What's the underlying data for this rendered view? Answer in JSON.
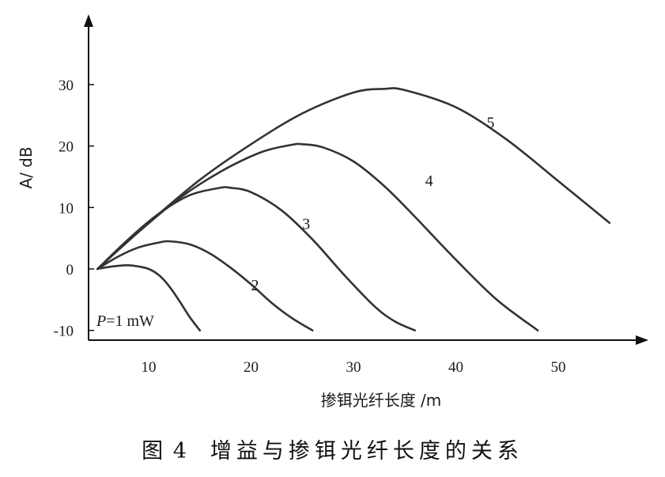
{
  "caption": {
    "figure_number": "图 4",
    "text": "增益与掺铒光纤长度的关系"
  },
  "chart_data": {
    "type": "line",
    "title": "",
    "xlabel": "掺铒光纤长度 /m",
    "ylabel": "A/ dB",
    "xlim": [
      5,
      58
    ],
    "ylim": [
      -10,
      38
    ],
    "x_ticks": [
      10,
      20,
      30,
      40,
      50
    ],
    "y_ticks": [
      -10,
      0,
      10,
      20,
      30
    ],
    "annotation": "P=1 mW",
    "series": [
      {
        "name": "",
        "label_pos": [
          2,
          -5
        ],
        "x": [
          5,
          6,
          7,
          8,
          9,
          10,
          11,
          12,
          13,
          14,
          15
        ],
        "y": [
          0,
          0.3,
          0.5,
          0.6,
          0.4,
          0,
          -1,
          -2.8,
          -5.2,
          -7.8,
          -10
        ]
      },
      {
        "name": "2",
        "label_pos": [
          20,
          -3.5
        ],
        "x": [
          5,
          7,
          9,
          11,
          12,
          14,
          16,
          18,
          20,
          22,
          24,
          26
        ],
        "y": [
          0,
          2,
          3.5,
          4.3,
          4.5,
          4,
          2.5,
          0.2,
          -2.5,
          -5.5,
          -8,
          -10
        ]
      },
      {
        "name": "3",
        "label_pos": [
          25,
          6.5
        ],
        "x": [
          5,
          8,
          11,
          14,
          17,
          18,
          20,
          23,
          26,
          29,
          32,
          34,
          36
        ],
        "y": [
          0,
          4.8,
          9,
          12,
          13.2,
          13.2,
          12.5,
          9.5,
          4.8,
          -0.8,
          -6,
          -8.5,
          -10
        ]
      },
      {
        "name": "4",
        "label_pos": [
          37,
          13.5
        ],
        "x": [
          5,
          9,
          13,
          17,
          21,
          24,
          25,
          27,
          30,
          33,
          36,
          40,
          44,
          48
        ],
        "y": [
          0,
          6,
          11.5,
          15.8,
          19,
          20.2,
          20.3,
          19.8,
          17.5,
          13.5,
          8.5,
          1.5,
          -5,
          -10
        ]
      },
      {
        "name": "5",
        "label_pos": [
          43,
          23
        ],
        "x": [
          5,
          10,
          15,
          20,
          25,
          30,
          33,
          35,
          40,
          45,
          50,
          55
        ],
        "y": [
          0,
          7.5,
          14.5,
          20.3,
          25.3,
          28.7,
          29.3,
          29.1,
          26.3,
          21,
          14.3,
          7.5
        ]
      }
    ]
  }
}
